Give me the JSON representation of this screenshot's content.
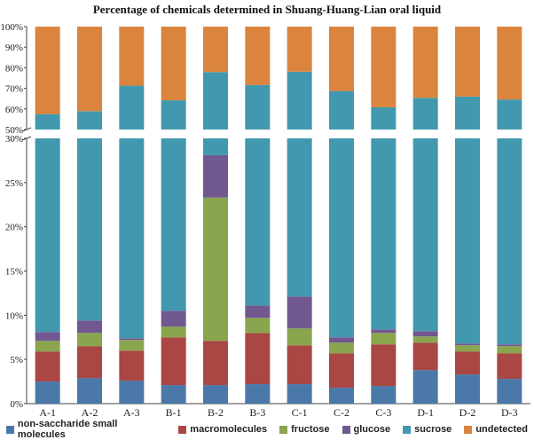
{
  "chart_data": {
    "type": "bar",
    "stacked": true,
    "broken_axis": true,
    "title": "Percentage of chemicals determined in Shuang-Huang-Lian oral liquid",
    "xlabel": "",
    "ylabel": "",
    "categories": [
      "A-1",
      "A-2",
      "A-3",
      "B-1",
      "B-2",
      "B-3",
      "C-1",
      "C-2",
      "C-3",
      "D-1",
      "D-2",
      "D-3"
    ],
    "lower_axis": {
      "ylim": [
        0,
        30
      ],
      "tick_labels": [
        "0%",
        "5%",
        "10%",
        "15%",
        "20%",
        "25%",
        "30%"
      ]
    },
    "upper_axis": {
      "ylim": [
        50,
        100
      ],
      "tick_labels": [
        "50%",
        "60%",
        "70%",
        "80%",
        "90%",
        "100%"
      ]
    },
    "series": [
      {
        "name": "non-saccharide small molecules",
        "color": "#4a78a8",
        "values": [
          2.5,
          2.9,
          2.6,
          2.1,
          2.1,
          2.2,
          2.2,
          1.8,
          2.0,
          3.8,
          3.3,
          2.8
        ]
      },
      {
        "name": "macromolecules",
        "color": "#aa4643",
        "values": [
          3.4,
          3.6,
          3.4,
          5.4,
          5.0,
          5.8,
          4.4,
          3.9,
          4.7,
          3.1,
          2.6,
          2.9
        ]
      },
      {
        "name": "fructose",
        "color": "#89a54e",
        "values": [
          1.2,
          1.5,
          1.2,
          1.2,
          16.2,
          1.7,
          1.9,
          1.2,
          1.3,
          0.7,
          0.7,
          0.8
        ]
      },
      {
        "name": "glucose",
        "color": "#71588f",
        "values": [
          1.0,
          1.4,
          0.2,
          1.8,
          4.8,
          1.4,
          3.6,
          0.6,
          0.4,
          0.6,
          0.2,
          0.2
        ]
      },
      {
        "name": "sucrose",
        "color": "#4198af",
        "values": [
          49.4,
          49.5,
          63.9,
          53.7,
          49.8,
          60.5,
          66.0,
          61.2,
          52.4,
          57.2,
          59.2,
          57.9
        ]
      },
      {
        "name": "undetected",
        "color": "#db843d",
        "values": [
          42.5,
          41.1,
          28.7,
          35.8,
          22.1,
          28.4,
          21.9,
          31.3,
          39.2,
          34.6,
          34.0,
          35.4
        ]
      }
    ]
  }
}
